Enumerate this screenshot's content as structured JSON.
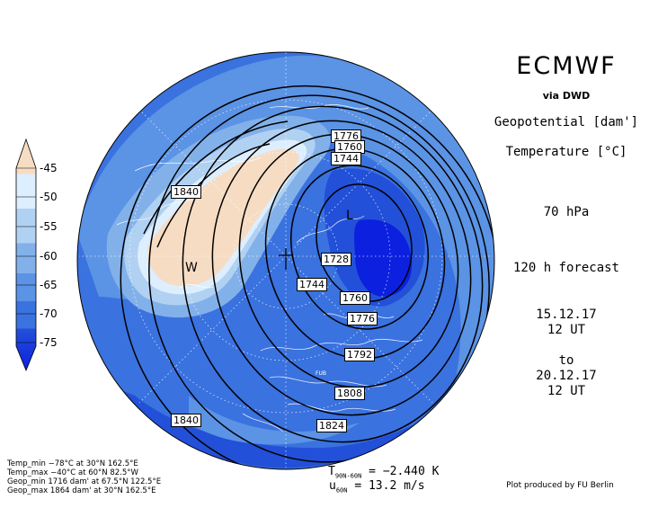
{
  "header": {
    "brand": "ECMWF",
    "source": "via DWD",
    "variable1": "Geopotential [dam']",
    "variable2": "Temperature [°C]",
    "level": "70 hPa",
    "forecast": "120 h forecast",
    "init_date": "15.12.17",
    "init_time": "12 UT",
    "to": "to",
    "valid_date": "20.12.17",
    "valid_time": "12 UT"
  },
  "credit": "Plot produced by FU Berlin",
  "colorbar": {
    "ticks": [
      "-45",
      "-50",
      "-55",
      "-60",
      "-65",
      "-70",
      "-75"
    ],
    "colors": [
      "#f6dcc3",
      "#ddeeff",
      "#b1d1f2",
      "#82b1ea",
      "#5b93e5",
      "#3a72df",
      "#2350d8",
      "#0c20e0"
    ]
  },
  "stats": {
    "temp_min": "Temp_min −78°C at 30°N 162.5°E",
    "temp_max": "Temp_max −40°C at 60°N 82.5°W",
    "geop_min": "Geop_min 1716 dam' at 67.5°N 122.5°E",
    "geop_max": "Geop_max 1864 dam' at 30°N 162.5°E"
  },
  "bottom_stats": {
    "t_symbol": "T",
    "t_sub": "90N-60N",
    "t_value": "= −2.440 K",
    "u_symbol": "u",
    "u_sub": "60N",
    "u_value": "= 13.2 m/s"
  },
  "map": {
    "contour_labels": [
      "1776",
      "1760",
      "1744",
      "1840",
      "1728",
      "1744",
      "1760",
      "1776",
      "1792",
      "1808",
      "1824",
      "1840"
    ],
    "low_marker": "L",
    "warm_marker": "W",
    "station": "FUB"
  }
}
